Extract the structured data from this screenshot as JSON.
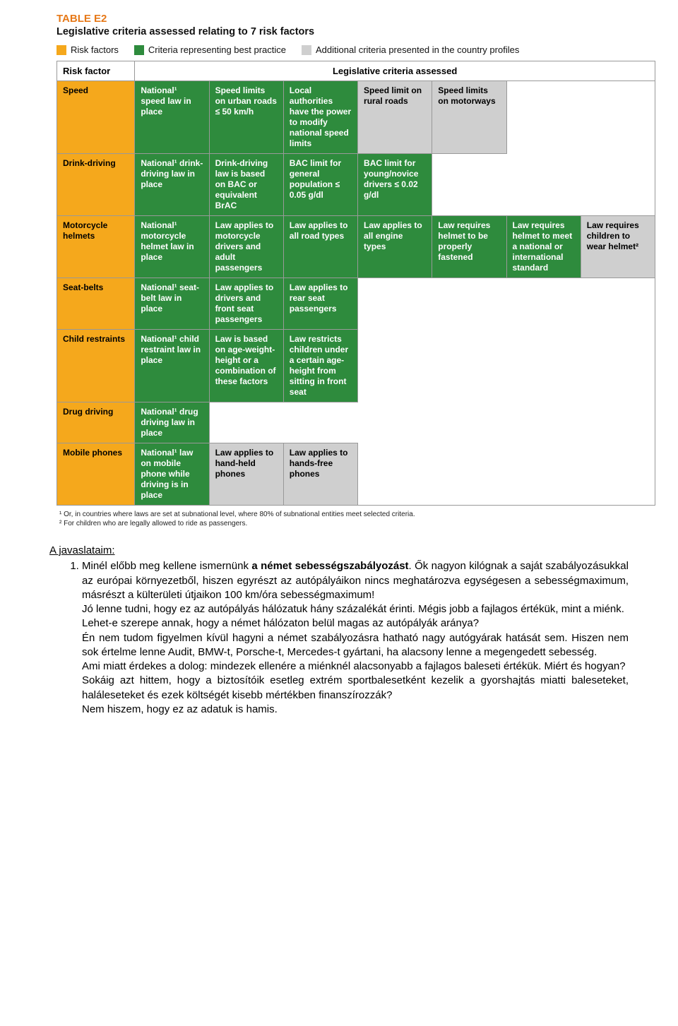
{
  "tableTitle": "TABLE E2",
  "tableSubtitle": "Legislative criteria assessed relating to 7 risk factors",
  "legend": [
    {
      "color": "#f5a81c",
      "label": "Risk factors"
    },
    {
      "color": "#2e8b3d",
      "label": "Criteria representing best practice"
    },
    {
      "color": "#cfcfcf",
      "label": "Additional criteria presented in the country profiles"
    }
  ],
  "colors": {
    "riskFactor": "#f5a81c",
    "bestPractice": "#2e8b3d",
    "additional": "#cfcfcf",
    "border": "#999999",
    "titleOrange": "#e67817",
    "text": "#000000",
    "bestPracticeText": "#ffffff"
  },
  "header": {
    "col0": "Risk factor",
    "col1": "Legislative criteria assessed"
  },
  "rows": [
    {
      "rf": "Speed",
      "cells": [
        {
          "t": "green",
          "text": "National¹ speed law in place"
        },
        {
          "t": "green",
          "text": "Speed limits on urban roads ≤ 50 km/h"
        },
        {
          "t": "green",
          "text": "Local authorities have the power to modify national speed limits"
        },
        {
          "t": "grey",
          "text": "Speed limit on rural roads"
        },
        {
          "t": "grey",
          "text": "Speed limits on motorways"
        },
        {
          "t": "empty",
          "text": ""
        }
      ]
    },
    {
      "rf": "Drink-driving",
      "cells": [
        {
          "t": "green",
          "text": "National¹ drink-driving law in place"
        },
        {
          "t": "green",
          "text": "Drink-driving law is based on BAC or equivalent BrAC"
        },
        {
          "t": "green",
          "text": "BAC limit for general population ≤ 0.05 g/dl"
        },
        {
          "t": "green",
          "text": "BAC limit for young/novice drivers ≤ 0.02 g/dl"
        },
        {
          "t": "empty",
          "text": ""
        },
        {
          "t": "empty",
          "text": ""
        }
      ]
    },
    {
      "rf": "Motorcycle helmets",
      "cells": [
        {
          "t": "green",
          "text": "National¹ motorcycle helmet law in place"
        },
        {
          "t": "green",
          "text": "Law applies to motorcycle drivers and adult passengers"
        },
        {
          "t": "green",
          "text": "Law applies to all road types"
        },
        {
          "t": "green",
          "text": "Law applies to all engine types"
        },
        {
          "t": "green",
          "text": "Law requires helmet to be properly fastened"
        },
        {
          "t": "green",
          "text": "Law requires helmet to meet a national or international standard"
        },
        {
          "t": "grey",
          "text": "Law requires children to wear helmet²"
        }
      ],
      "extra": true
    },
    {
      "rf": "Seat-belts",
      "cells": [
        {
          "t": "green",
          "text": "National¹ seat-belt law in place"
        },
        {
          "t": "green",
          "text": "Law applies to drivers and front seat passengers"
        },
        {
          "t": "green",
          "text": "Law applies to rear seat passengers"
        },
        {
          "t": "empty",
          "text": ""
        },
        {
          "t": "empty",
          "text": ""
        },
        {
          "t": "empty",
          "text": ""
        }
      ]
    },
    {
      "rf": "Child restraints",
      "cells": [
        {
          "t": "green",
          "text": "National¹ child restraint law in place"
        },
        {
          "t": "green",
          "text": "Law is based on age-weight-height or a combination of these factors"
        },
        {
          "t": "green",
          "text": "Law restricts children under a certain age-height from sitting in front seat"
        },
        {
          "t": "empty",
          "text": ""
        },
        {
          "t": "empty",
          "text": ""
        },
        {
          "t": "empty",
          "text": ""
        }
      ]
    },
    {
      "rf": "Drug driving",
      "cells": [
        {
          "t": "green",
          "text": "National¹ drug driving law in place"
        },
        {
          "t": "empty",
          "text": ""
        },
        {
          "t": "empty",
          "text": ""
        },
        {
          "t": "empty",
          "text": ""
        },
        {
          "t": "empty",
          "text": ""
        },
        {
          "t": "empty",
          "text": ""
        }
      ]
    },
    {
      "rf": "Mobile phones",
      "cells": [
        {
          "t": "green",
          "text": "National¹ law on mobile phone while driving is in place"
        },
        {
          "t": "grey",
          "text": "Law applies to hand-held phones"
        },
        {
          "t": "grey",
          "text": "Law applies to hands-free phones"
        },
        {
          "t": "empty",
          "text": ""
        },
        {
          "t": "empty",
          "text": ""
        },
        {
          "t": "empty",
          "text": ""
        }
      ]
    }
  ],
  "footnotes": [
    "¹ Or, in countries where laws are set at subnational level, where 80% of subnational entities meet selected criteria.",
    "² For children who are legally allowed to ride as passengers."
  ],
  "bodyHeading": "A javaslataim:",
  "bodyIntro": "Minél előbb meg kellene ismernünk ",
  "bodyBold": "a német sebességszabályozást",
  "bodyParas": [
    ". Ők nagyon kilógnak a saját szabályozásukkal az európai környezetből, hiszen egyrészt az autópályáikon nincs meghatározva egységesen a sebességmaximum, másrészt a külterületi útjaikon 100 km/óra sebességmaximum!",
    "Jó lenne tudni, hogy ez az autópályás hálózatuk hány százalékát érinti. Mégis jobb a fajlagos értékük, mint a miénk.",
    "Lehet-e szerepe annak, hogy a német hálózaton belül magas az autópályák aránya?",
    "Én nem tudom figyelmen kívül hagyni a német szabályozásra hatható nagy autógyárak hatását sem. Hiszen nem sok értelme lenne Audit, BMW-t, Porsche-t, Mercedes-t gyártani, ha alacsony lenne a megengedett sebesség.",
    "Ami miatt érdekes a dolog: mindezek ellenére a miénknél alacsonyabb a fajlagos baleseti értékük. Miért és hogyan?",
    "Sokáig azt hittem, hogy a biztosítóik esetleg extrém sportbalesetként kezelik a gyorshajtás miatti baleseteket, haláleseteket és ezek költségét kisebb mértékben finanszírozzák?",
    "Nem hiszem, hogy ez az adatuk is hamis."
  ]
}
